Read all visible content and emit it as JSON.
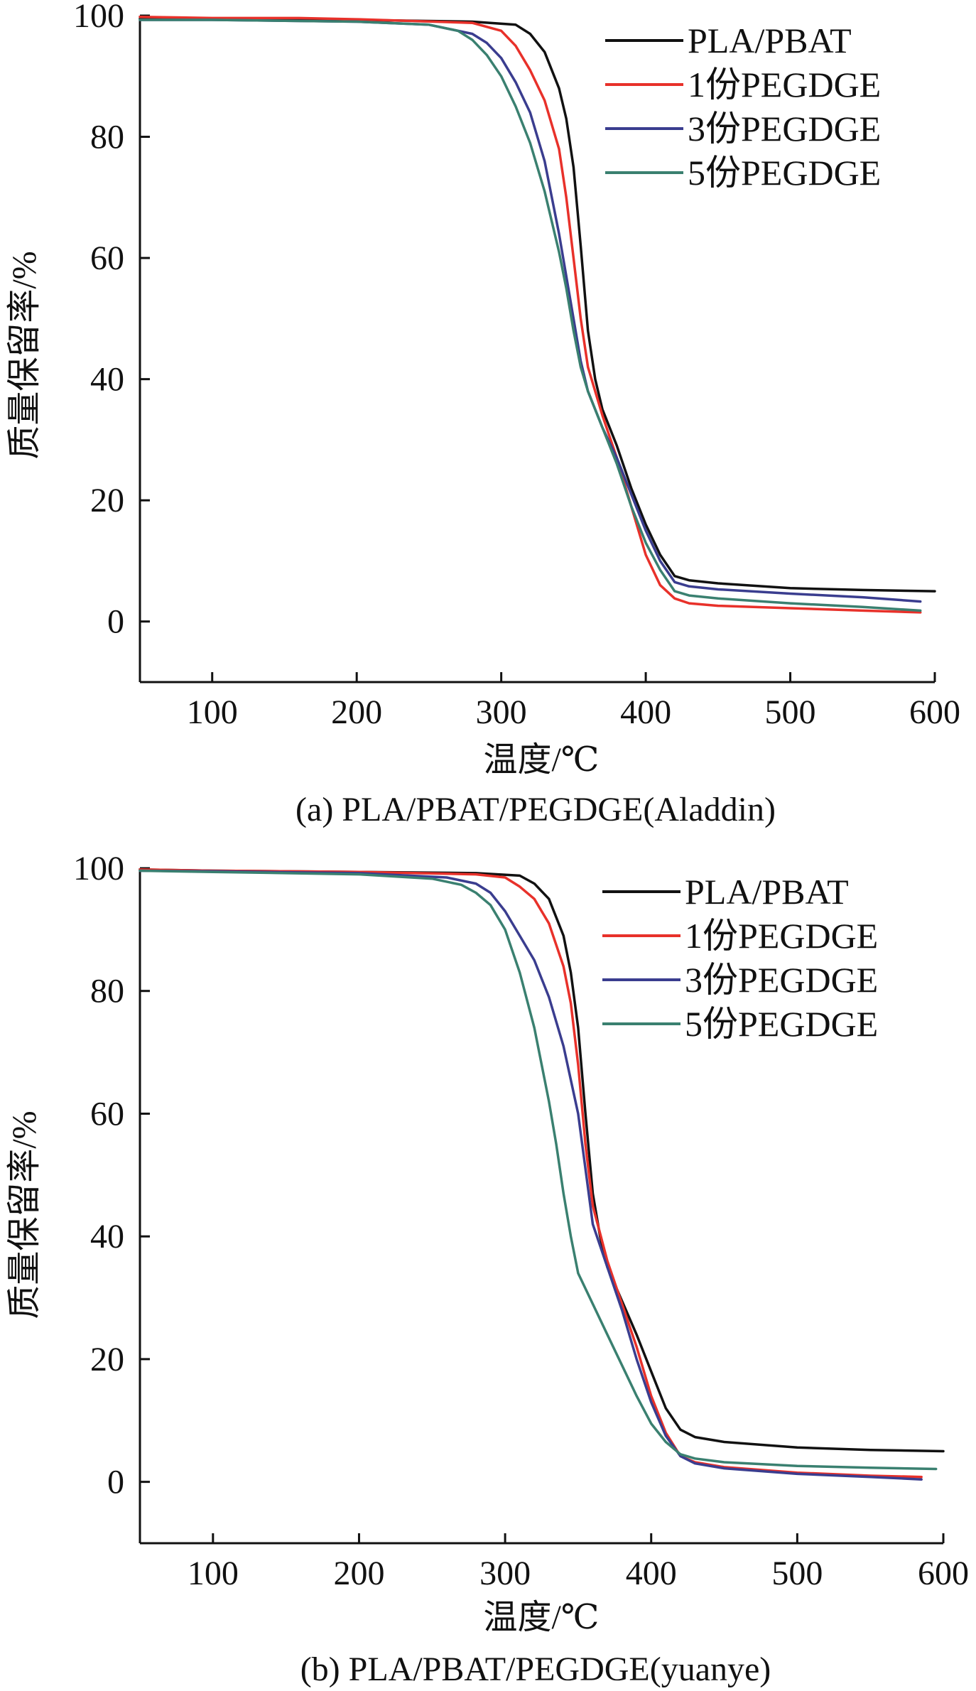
{
  "chart_data": [
    {
      "type": "line",
      "caption": "(a) PLA/PBAT/PEGDGE(Aladdin)",
      "xlabel": "温度/℃",
      "ylabel": "质量保留率/%",
      "xlim": [
        50,
        600
      ],
      "ylim": [
        -10,
        100
      ],
      "xticks": [
        "100",
        "200",
        "300",
        "400",
        "500",
        "600"
      ],
      "yticks": [
        "0",
        "20",
        "40",
        "60",
        "80",
        "100"
      ],
      "legend_position": "top-right",
      "series": [
        {
          "name": "PLA/PBAT",
          "color": "#111111",
          "x": [
            50,
            100,
            200,
            280,
            310,
            320,
            330,
            340,
            345,
            350,
            355,
            360,
            365,
            370,
            380,
            390,
            400,
            410,
            420,
            430,
            450,
            500,
            550,
            600
          ],
          "y": [
            99.5,
            99.5,
            99.3,
            99.0,
            98.5,
            97,
            94,
            88,
            83,
            75,
            62,
            48,
            40,
            35,
            29,
            22,
            16,
            11,
            7.5,
            6.8,
            6.3,
            5.5,
            5.2,
            5.0
          ]
        },
        {
          "name": "1份PEGDGE",
          "color": "#e8312a",
          "x": [
            50,
            100,
            160,
            200,
            280,
            300,
            310,
            320,
            330,
            340,
            345,
            350,
            355,
            360,
            370,
            380,
            390,
            400,
            410,
            420,
            430,
            450,
            500,
            550,
            590
          ],
          "y": [
            99.8,
            99.6,
            99.6,
            99.4,
            98.8,
            97.5,
            95,
            91,
            86,
            78,
            70,
            60,
            50,
            42,
            34,
            27,
            19,
            11,
            6,
            3.8,
            3.0,
            2.6,
            2.2,
            1.8,
            1.5
          ]
        },
        {
          "name": "3份PEGDGE",
          "color": "#3a3d8f",
          "x": [
            50,
            100,
            200,
            250,
            280,
            290,
            300,
            310,
            320,
            330,
            340,
            350,
            355,
            360,
            370,
            380,
            390,
            400,
            410,
            420,
            430,
            450,
            500,
            550,
            590
          ],
          "y": [
            99.3,
            99.3,
            99.0,
            98.5,
            97.0,
            95.5,
            93,
            89,
            84,
            76,
            64,
            50,
            43,
            38,
            32,
            27,
            21,
            15,
            10,
            6.5,
            5.8,
            5.3,
            4.6,
            4.0,
            3.3
          ]
        },
        {
          "name": "5份PEGDGE",
          "color": "#3a8070",
          "x": [
            50,
            100,
            200,
            250,
            270,
            280,
            290,
            300,
            310,
            320,
            330,
            340,
            345,
            350,
            355,
            360,
            370,
            380,
            390,
            400,
            410,
            420,
            430,
            450,
            500,
            550,
            590
          ],
          "y": [
            99.3,
            99.3,
            99.0,
            98.5,
            97.5,
            96.0,
            93.5,
            90,
            85,
            79,
            71,
            61,
            55,
            48,
            42,
            38,
            32,
            26,
            19,
            13,
            8.5,
            5.0,
            4.3,
            3.8,
            3.0,
            2.4,
            1.8
          ]
        }
      ]
    },
    {
      "type": "line",
      "caption": "(b) PLA/PBAT/PEGDGE(yuanye)",
      "xlabel": "温度/℃",
      "ylabel": "质量保留率/%",
      "xlim": [
        50,
        600
      ],
      "ylim": [
        -10,
        100
      ],
      "xticks": [
        "100",
        "200",
        "300",
        "400",
        "500",
        "600"
      ],
      "yticks": [
        "0",
        "20",
        "40",
        "60",
        "80",
        "100"
      ],
      "legend_position": "top-right",
      "series": [
        {
          "name": "PLA/PBAT",
          "color": "#111111",
          "x": [
            50,
            100,
            200,
            280,
            310,
            320,
            330,
            340,
            345,
            350,
            355,
            360,
            365,
            370,
            380,
            390,
            400,
            410,
            420,
            430,
            450,
            500,
            550,
            600
          ],
          "y": [
            99.8,
            99.6,
            99.4,
            99.2,
            98.8,
            97.5,
            95,
            89,
            83,
            74,
            60,
            47,
            40,
            35,
            29.5,
            24,
            18,
            12,
            8.5,
            7.3,
            6.5,
            5.6,
            5.2,
            5.0
          ]
        },
        {
          "name": "1份PEGDGE",
          "color": "#e8312a",
          "x": [
            50,
            100,
            200,
            280,
            300,
            310,
            320,
            330,
            340,
            345,
            350,
            355,
            360,
            370,
            380,
            390,
            400,
            410,
            420,
            430,
            450,
            500,
            550,
            585
          ],
          "y": [
            99.8,
            99.6,
            99.4,
            99.0,
            98.5,
            97,
            95,
            91,
            84,
            78,
            68,
            55,
            45,
            36,
            29,
            22,
            14,
            8,
            4.2,
            3.2,
            2.4,
            1.5,
            1.0,
            0.8
          ]
        },
        {
          "name": "3份PEGDGE",
          "color": "#3a3d8f",
          "x": [
            50,
            100,
            200,
            260,
            280,
            290,
            300,
            310,
            320,
            330,
            340,
            350,
            355,
            360,
            370,
            380,
            390,
            400,
            410,
            420,
            430,
            450,
            500,
            550,
            585
          ],
          "y": [
            99.6,
            99.5,
            99.2,
            98.5,
            97.5,
            96,
            93,
            89,
            85,
            79,
            71,
            60,
            51,
            42,
            35,
            28,
            20,
            13,
            7.5,
            4.2,
            3.0,
            2.2,
            1.3,
            0.8,
            0.4
          ]
        },
        {
          "name": "5份PEGDGE",
          "color": "#3a8070",
          "x": [
            50,
            100,
            200,
            250,
            270,
            280,
            290,
            300,
            310,
            320,
            330,
            335,
            340,
            345,
            350,
            360,
            370,
            380,
            390,
            400,
            410,
            420,
            430,
            450,
            500,
            550,
            595
          ],
          "y": [
            99.6,
            99.4,
            99.0,
            98.3,
            97.3,
            96.0,
            94,
            90,
            83,
            74,
            62,
            55,
            47,
            40,
            34,
            29,
            24,
            19,
            14,
            9.5,
            6.5,
            4.5,
            3.8,
            3.2,
            2.6,
            2.3,
            2.1
          ]
        }
      ]
    }
  ]
}
